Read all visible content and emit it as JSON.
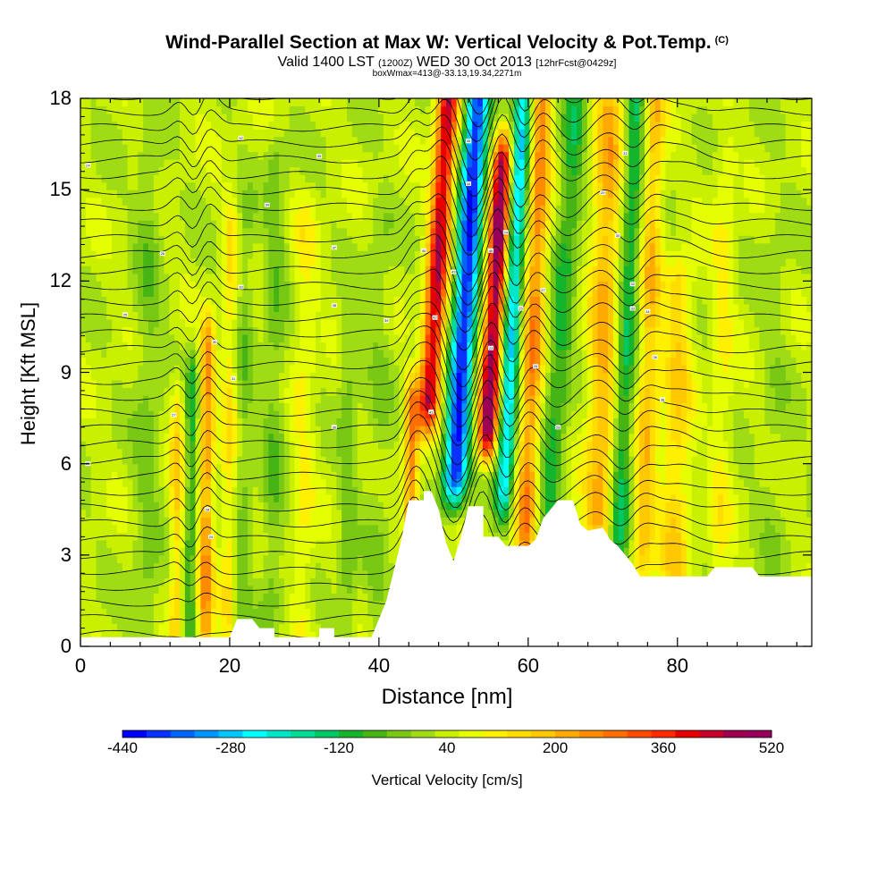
{
  "chart_data": {
    "type": "heatmap",
    "title": "Wind-Parallel Section at Max W: Vertical Velocity & Pot.Temp.",
    "title_mark": "(C)",
    "subtitle_main": "Valid 1400 LST",
    "subtitle_utc": "(1200Z)",
    "subtitle_date": "WED 30 Oct 2013",
    "subtitle_run": "[12hrFcst@0429z]",
    "subsubtitle": "boxWmax=413@-33.13,19.34,2271m",
    "xlabel": "Distance [nm]",
    "ylabel": "Height [Kft MSL]",
    "xlim": [
      0,
      98
    ],
    "ylim": [
      0,
      18
    ],
    "xticks": [
      0,
      20,
      40,
      60,
      80
    ],
    "yticks": [
      0,
      3,
      6,
      9,
      12,
      15,
      18
    ],
    "colorbar": {
      "label": "Vertical Velocity [cm/s]",
      "min": -440,
      "max": 520,
      "tick_values": [
        -440,
        -280,
        -120,
        40,
        200,
        360,
        520
      ],
      "colors": [
        "#0000ff",
        "#0a32ff",
        "#0064ff",
        "#0096ff",
        "#00c8ff",
        "#00ffff",
        "#00e6c8",
        "#00dc96",
        "#00c864",
        "#14b42d",
        "#46b414",
        "#78c814",
        "#a0dc14",
        "#c8f000",
        "#e6ff00",
        "#fff000",
        "#ffdc00",
        "#ffc800",
        "#ffaa00",
        "#ff8c00",
        "#ff6e00",
        "#ff4b00",
        "#ff2800",
        "#e60000",
        "#c80028",
        "#a00050",
        "#96005a"
      ]
    },
    "vertical_velocity_features": [
      {
        "x": 47,
        "top": 18,
        "bottom": 8,
        "tilt": 2.3,
        "width": 1.4,
        "w": 400
      },
      {
        "x": 51,
        "top": 18,
        "bottom": 5.5,
        "tilt": 2.2,
        "width": 1.6,
        "w": -440
      },
      {
        "x": 55,
        "top": 16,
        "bottom": 7,
        "tilt": 2.0,
        "width": 1.3,
        "w": 470
      },
      {
        "x": 57.5,
        "top": 18,
        "bottom": 5,
        "tilt": 1.8,
        "width": 1.2,
        "w": -300
      },
      {
        "x": 60.5,
        "top": 18,
        "bottom": 3.5,
        "tilt": 1.5,
        "width": 1.4,
        "w": 220
      },
      {
        "x": 64,
        "top": 18,
        "bottom": 4,
        "tilt": 2.5,
        "width": 1.6,
        "w": -130
      },
      {
        "x": 70,
        "top": 18,
        "bottom": 4,
        "tilt": 1.0,
        "width": 2.0,
        "w": 170
      },
      {
        "x": 73,
        "top": 18,
        "bottom": 3,
        "tilt": 1.5,
        "width": 1.4,
        "w": -160
      },
      {
        "x": 76,
        "top": 18,
        "bottom": 3,
        "tilt": 1.0,
        "width": 1.4,
        "w": 150
      },
      {
        "x": 80,
        "top": 12,
        "bottom": 2.5,
        "tilt": 0.6,
        "width": 2.0,
        "w": 120
      },
      {
        "x": 44.5,
        "top": 8,
        "bottom": 4,
        "tilt": 0.5,
        "width": 1.0,
        "w": 230
      },
      {
        "x": 40,
        "top": 14,
        "bottom": 1,
        "tilt": 0.3,
        "width": 1.8,
        "w": -40
      },
      {
        "x": 36,
        "top": 10,
        "bottom": 0.5,
        "tilt": 0.3,
        "width": 1.2,
        "w": -70
      },
      {
        "x": 26,
        "top": 16,
        "bottom": 1.5,
        "tilt": 0.4,
        "width": 1.5,
        "w": -70
      },
      {
        "x": 22,
        "top": 14,
        "bottom": 0.5,
        "tilt": 0.3,
        "width": 1.2,
        "w": -60
      },
      {
        "x": 20,
        "top": 14,
        "bottom": 0.5,
        "tilt": 0.3,
        "width": 1.0,
        "w": 90
      },
      {
        "x": 17,
        "top": 10,
        "bottom": 0.5,
        "tilt": 0.3,
        "width": 1.0,
        "w": 200
      },
      {
        "x": 15,
        "top": 9,
        "bottom": 0.5,
        "tilt": 0.4,
        "width": 0.8,
        "w": -120
      },
      {
        "x": 13,
        "top": 8,
        "bottom": 0.5,
        "tilt": 0.2,
        "width": 0.9,
        "w": 120
      },
      {
        "x": 9,
        "top": 16,
        "bottom": 0.5,
        "tilt": 0.3,
        "width": 1.8,
        "w": -60
      },
      {
        "x": 30,
        "top": 14,
        "bottom": 0.5,
        "tilt": 0.3,
        "width": 1.5,
        "w": 60
      },
      {
        "x": 93,
        "top": 14,
        "bottom": 2,
        "tilt": 0.5,
        "width": 2.0,
        "w": -30
      },
      {
        "x": 86,
        "top": 16,
        "bottom": 2.5,
        "tilt": 0.4,
        "width": 1.5,
        "w": 60
      }
    ],
    "terrain_kft": [
      [
        0,
        0.3
      ],
      [
        20,
        0.3
      ],
      [
        21,
        0.9
      ],
      [
        23,
        0.9
      ],
      [
        24,
        0.6
      ],
      [
        26,
        0.6
      ],
      [
        26,
        0.3
      ],
      [
        32,
        0.3
      ],
      [
        32,
        0.6
      ],
      [
        34,
        0.6
      ],
      [
        34,
        0.3
      ],
      [
        39,
        0.3
      ],
      [
        40,
        0.9
      ],
      [
        41,
        1.5
      ],
      [
        42,
        2.5
      ],
      [
        43,
        3.5
      ],
      [
        44,
        4.8
      ],
      [
        46,
        4.8
      ],
      [
        46,
        5.1
      ],
      [
        47,
        5.1
      ],
      [
        48,
        4.5
      ],
      [
        49,
        3.4
      ],
      [
        50,
        2.8
      ],
      [
        51,
        3.6
      ],
      [
        52,
        4.6
      ],
      [
        54,
        4.6
      ],
      [
        54,
        3.6
      ],
      [
        56,
        3.6
      ],
      [
        57,
        3.3
      ],
      [
        60,
        3.3
      ],
      [
        61,
        3.5
      ],
      [
        62,
        4.2
      ],
      [
        64,
        4.8
      ],
      [
        66,
        4.8
      ],
      [
        67,
        4.0
      ],
      [
        68,
        3.8
      ],
      [
        70,
        3.9
      ],
      [
        71,
        3.5
      ],
      [
        72,
        3.3
      ],
      [
        74,
        2.7
      ],
      [
        75,
        2.3
      ],
      [
        84,
        2.3
      ],
      [
        85,
        2.6
      ],
      [
        90,
        2.6
      ],
      [
        91,
        2.3
      ],
      [
        98,
        2.3
      ]
    ],
    "potential_temperature_contours": {
      "levels": 36,
      "base_kft": 0.4,
      "spacing_kft": 0.52,
      "labels": [
        "23",
        "24",
        "25",
        "26",
        "27",
        "28",
        "29",
        "30",
        "31",
        "32",
        "33",
        "34",
        "35",
        "36",
        "37",
        "38",
        "39",
        "40",
        "41",
        "42",
        "43",
        "44",
        "45",
        "46"
      ]
    }
  }
}
